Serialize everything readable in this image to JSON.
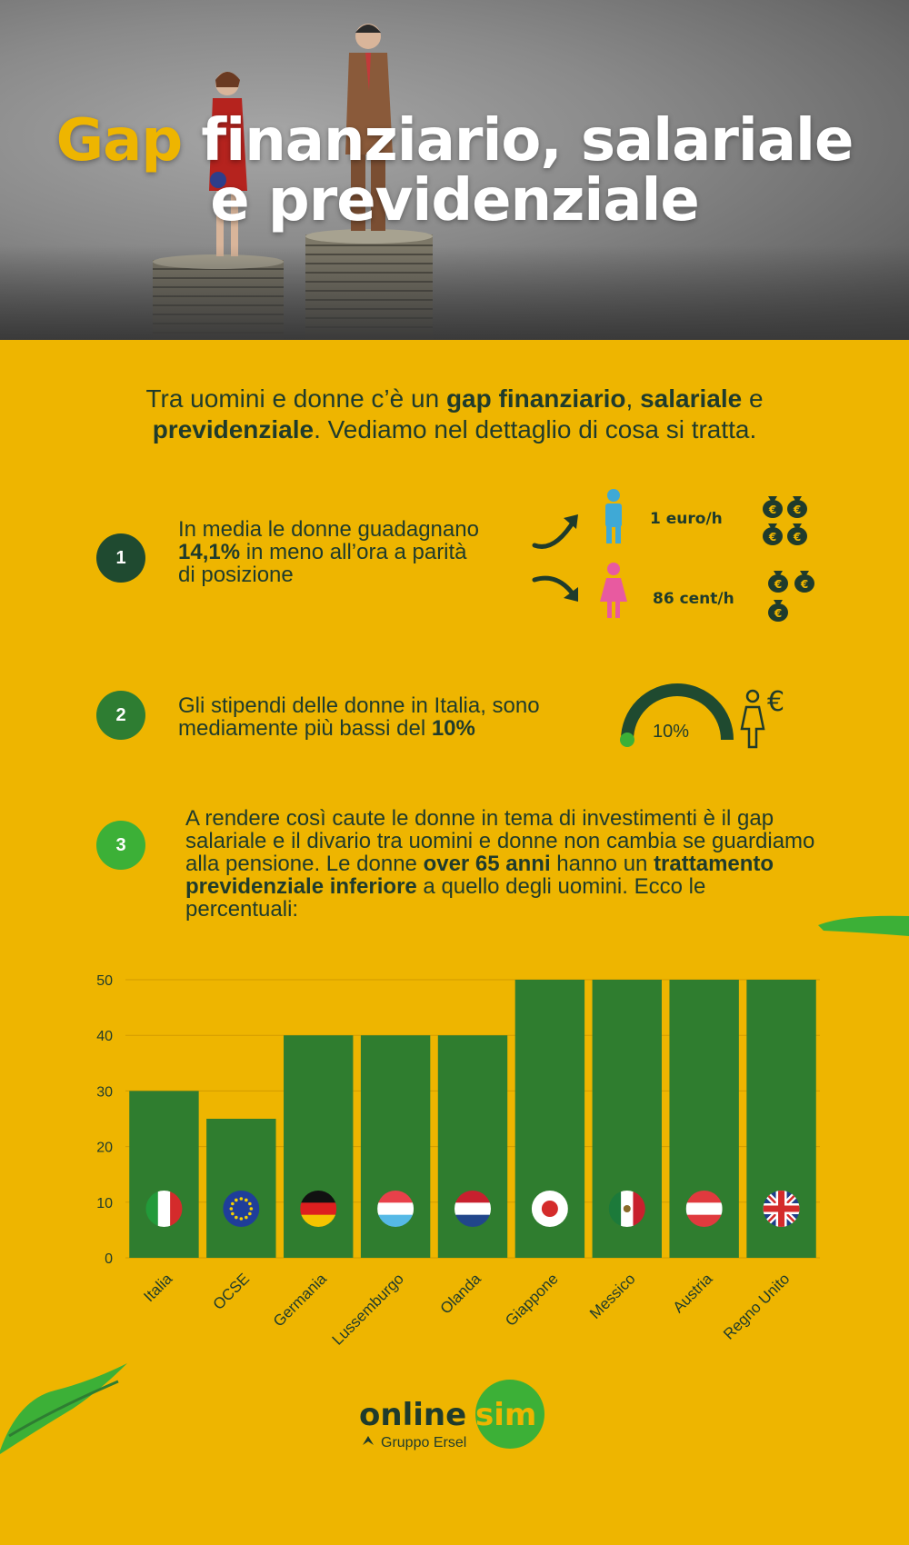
{
  "title": {
    "accent": "Gap",
    "line1_rest": " finanziario, salariale",
    "line2": "e previdenziale"
  },
  "intro": {
    "t1": "Tra uomini e donne c’è un ",
    "b1": "gap finanziario",
    "t2": ", ",
    "b2": "salariale",
    "t3": " e ",
    "b3": "previdenziale",
    "t4": ". Vediamo nel dettaglio di cosa si tratta."
  },
  "points": [
    {
      "number": "1",
      "color": "#1f4a30",
      "t1": "In media le donne guadagnano ",
      "b1": "14,1%",
      "t2": " in meno all’ora a parità di posizione"
    },
    {
      "number": "2",
      "color": "#2e7d32",
      "t1": "Gli stipendi delle donne in Italia, sono mediamente più bassi del ",
      "b1": "10%",
      "t2": ""
    },
    {
      "number": "3",
      "color": "#3cb037",
      "t1": "A rendere così caute le donne in tema di investimenti è il gap salariale e il divario tra uomini e donne non cambia se guardiamo alla pensione. Le donne ",
      "b1": "over 65 anni",
      "t2": " hanno un ",
      "b2": "trattamento previdenziale inferiore",
      "t3": " a quello degli uomini. Ecco le percentuali:"
    }
  ],
  "wage": {
    "men_label": "1 euro/h",
    "women_label": "86 cent/h",
    "men_color": "#3fa9d6",
    "women_color": "#e85aa0",
    "men_bags": 4,
    "women_bags": 3
  },
  "gauge": {
    "label": "10%",
    "value": 10,
    "euro_glyph": "€"
  },
  "chart_data": {
    "type": "bar",
    "categories": [
      "Italia",
      "OCSE",
      "Germania",
      "Lussemburgo",
      "Olanda",
      "Giappone",
      "Messico",
      "Austria",
      "Regno Unito"
    ],
    "values": [
      30,
      25,
      40,
      40,
      40,
      50,
      50,
      50,
      50
    ],
    "ylim": [
      0,
      50
    ],
    "yticks": [
      0,
      10,
      20,
      30,
      40,
      50
    ],
    "bar_color": "#2f7d2f",
    "grid": true,
    "flags": [
      "italy-flag-icon",
      "eu-flag-icon",
      "germany-flag-icon",
      "luxembourg-flag-icon",
      "netherlands-flag-icon",
      "japan-flag-icon",
      "mexico-flag-icon",
      "austria-flag-icon",
      "uk-flag-icon"
    ]
  },
  "logo": {
    "online": "online",
    "sim": "sim",
    "group": "Gruppo Ersel"
  }
}
